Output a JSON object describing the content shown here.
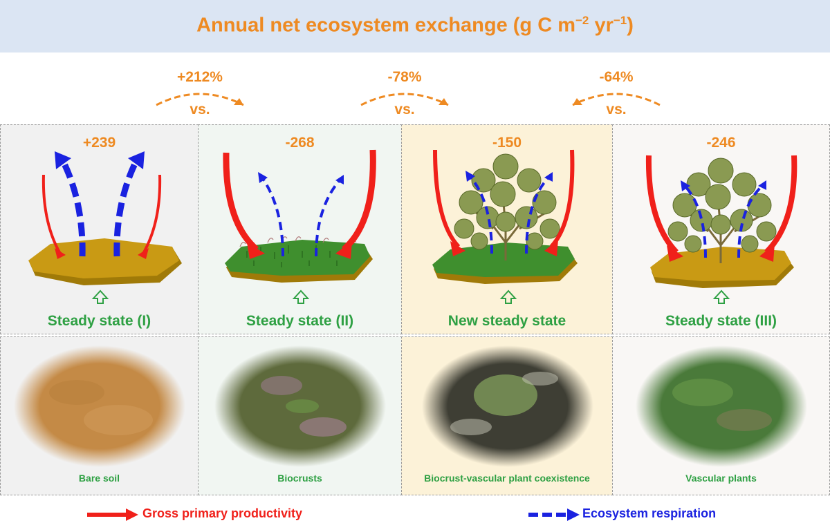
{
  "title": {
    "main": "Annual net ecosystem exchange (g C m",
    "exp1": "−2",
    "mid": " yr",
    "exp2": "−1",
    "end": ")"
  },
  "comparisons": [
    {
      "percent": "+212%",
      "vs": "vs.",
      "direction": "right"
    },
    {
      "percent": "-78%",
      "vs": "vs.",
      "direction": "right"
    },
    {
      "percent": "-64%",
      "vs": "vs.",
      "direction": "left"
    }
  ],
  "panels": [
    {
      "flux": "+239",
      "state": "Steady state (I)",
      "photo_label": "Bare soil",
      "surface": "bare"
    },
    {
      "flux": "-268",
      "state": "Steady state (II)",
      "photo_label": "Biocrusts",
      "surface": "biocrust"
    },
    {
      "flux": "-150",
      "state": "New steady state",
      "photo_label": "Biocrust-vascular plant coexistence",
      "surface": "coexist"
    },
    {
      "flux": "-246",
      "state": "Steady state (III)",
      "photo_label": "Vascular plants",
      "surface": "vascular"
    }
  ],
  "legend": {
    "gpp": "Gross primary productivity",
    "reco": "Ecosystem respiration"
  },
  "colors": {
    "title_bg": "#dbe5f3",
    "orange": "#ee8a22",
    "green_text": "#2ea043",
    "gpp_red": "#f0201a",
    "reco_blue": "#1a22e0",
    "soil": "#c99a14",
    "crust": "#3f8f2e"
  }
}
